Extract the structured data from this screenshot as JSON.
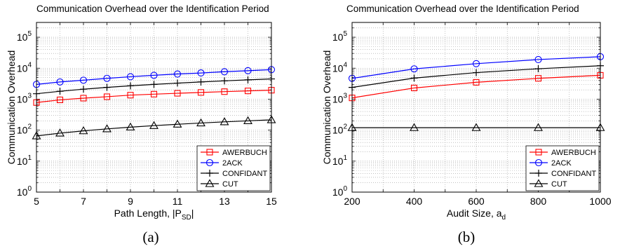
{
  "chart_data": [
    {
      "type": "line",
      "title": "Communication Overhead over the Identification Period",
      "xlabel": "Path Length, |P",
      "xlabel_sub": "SD",
      "xlabel_suffix": "|",
      "ylabel": "Communication Overhead",
      "x": [
        5,
        6,
        7,
        8,
        9,
        10,
        11,
        12,
        13,
        14,
        15
      ],
      "xlim": [
        5,
        15
      ],
      "xticks": [
        5,
        7,
        9,
        11,
        13,
        15
      ],
      "yscale": "log",
      "ylim": [
        1,
        300000
      ],
      "yticks": [
        {
          "base": "10",
          "exp": "0"
        },
        {
          "base": "10",
          "exp": "1"
        },
        {
          "base": "10",
          "exp": "2"
        },
        {
          "base": "10",
          "exp": "3"
        },
        {
          "base": "10",
          "exp": "4"
        },
        {
          "base": "10",
          "exp": "5"
        }
      ],
      "grid": true,
      "legend_position": "bottom-right",
      "series": [
        {
          "name": "AWERBUCH",
          "color": "#ff0000",
          "marker": "square",
          "values": [
            780,
            950,
            1080,
            1200,
            1350,
            1450,
            1550,
            1650,
            1750,
            1850,
            1950
          ]
        },
        {
          "name": "2ACK",
          "color": "#0000ff",
          "marker": "circle",
          "values": [
            3000,
            3600,
            4100,
            4700,
            5300,
            5900,
            6500,
            7000,
            7700,
            8300,
            9000
          ]
        },
        {
          "name": "CONFIDANT",
          "color": "#000000",
          "marker": "plus",
          "values": [
            1500,
            1800,
            2100,
            2400,
            2700,
            3000,
            3300,
            3600,
            3900,
            4200,
            4500
          ]
        },
        {
          "name": "CUT",
          "color": "#000000",
          "marker": "triangle",
          "values": [
            65,
            80,
            95,
            110,
            125,
            140,
            155,
            170,
            185,
            200,
            215
          ]
        }
      ],
      "caption": "(a)"
    },
    {
      "type": "line",
      "title": "Communication Overhead over the Identification Period",
      "xlabel": "Audit Size, a",
      "xlabel_sub": "d",
      "xlabel_suffix": "",
      "ylabel": "Communication Overhead",
      "x": [
        200,
        400,
        600,
        800,
        1000
      ],
      "xlim": [
        200,
        1000
      ],
      "xticks": [
        200,
        400,
        600,
        800,
        1000
      ],
      "yscale": "log",
      "ylim": [
        1,
        300000
      ],
      "yticks": [
        {
          "base": "10",
          "exp": "0"
        },
        {
          "base": "10",
          "exp": "1"
        },
        {
          "base": "10",
          "exp": "2"
        },
        {
          "base": "10",
          "exp": "3"
        },
        {
          "base": "10",
          "exp": "4"
        },
        {
          "base": "10",
          "exp": "5"
        }
      ],
      "grid": true,
      "legend_position": "bottom-right",
      "series": [
        {
          "name": "AWERBUCH",
          "color": "#ff0000",
          "marker": "square",
          "values": [
            1100,
            2300,
            3500,
            4700,
            5900
          ]
        },
        {
          "name": "2ACK",
          "color": "#0000ff",
          "marker": "circle",
          "values": [
            4700,
            9500,
            14000,
            19000,
            23500
          ]
        },
        {
          "name": "CONFIDANT",
          "color": "#000000",
          "marker": "plus",
          "values": [
            2400,
            4800,
            7200,
            9600,
            12000
          ]
        },
        {
          "name": "CUT",
          "color": "#000000",
          "marker": "triangle",
          "values": [
            120,
            120,
            120,
            120,
            120
          ]
        }
      ],
      "caption": "(b)"
    }
  ]
}
